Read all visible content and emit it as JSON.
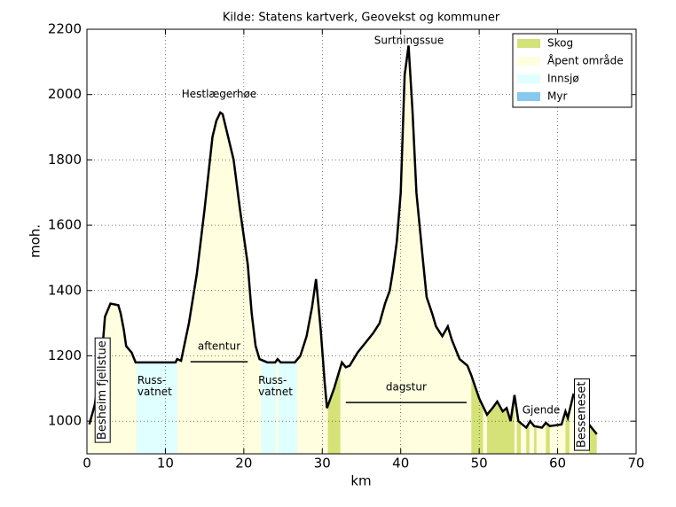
{
  "chart_data": {
    "type": "line",
    "title": "Kilde: Statens kartverk, Geovekst og kommuner",
    "xlabel": "km",
    "ylabel": "moh.",
    "xlim": [
      0,
      70
    ],
    "ylim": [
      900,
      2200
    ],
    "xticks": [
      0,
      10,
      20,
      30,
      40,
      50,
      60,
      70
    ],
    "yticks": [
      1000,
      1200,
      1400,
      1600,
      1800,
      2000,
      2200
    ],
    "grid": true,
    "color": "#000000",
    "fill_color": "#ffffe0",
    "x": [
      0.3,
      1,
      2,
      2.3,
      3,
      4,
      4.3,
      4.7,
      5,
      5.7,
      6.2,
      11.3,
      11.5,
      12,
      13,
      14,
      15,
      16,
      16.5,
      17,
      17.3,
      18,
      18.7,
      19.5,
      20.5,
      21,
      21.5,
      22,
      23,
      24,
      24.3,
      24.7,
      26.5,
      27.2,
      28,
      28.7,
      29.2,
      29.8,
      30.3,
      30.6,
      31.5,
      32.5,
      33,
      33.5,
      34.5,
      35.5,
      36.5,
      37.3,
      38,
      38.6,
      39,
      39.5,
      40,
      40.5,
      41,
      41.5,
      42,
      42.8,
      43.3,
      44,
      44.5,
      45.3,
      46,
      46.5,
      47.5,
      48.5,
      49,
      50,
      51,
      51.7,
      52.3,
      53,
      53.5,
      54,
      54.5,
      55,
      56,
      56.5,
      57,
      58,
      58.5,
      59,
      60.5,
      61,
      61.3,
      62,
      62.5,
      63,
      64,
      65
    ],
    "values": [
      990,
      1050,
      1230,
      1320,
      1360,
      1355,
      1330,
      1280,
      1230,
      1210,
      1180,
      1180,
      1190,
      1185,
      1300,
      1450,
      1650,
      1870,
      1920,
      1945,
      1940,
      1870,
      1800,
      1650,
      1480,
      1330,
      1230,
      1190,
      1180,
      1180,
      1190,
      1180,
      1180,
      1200,
      1260,
      1350,
      1435,
      1280,
      1120,
      1040,
      1100,
      1180,
      1165,
      1170,
      1210,
      1240,
      1270,
      1300,
      1360,
      1400,
      1460,
      1550,
      1700,
      2060,
      2150,
      1950,
      1700,
      1500,
      1380,
      1330,
      1290,
      1260,
      1290,
      1250,
      1190,
      1170,
      1140,
      1070,
      1020,
      1040,
      1060,
      1030,
      1040,
      1000,
      1080,
      1000,
      980,
      1000,
      985,
      980,
      995,
      985,
      990,
      1030,
      1010,
      1080,
      1070,
      1010,
      990,
      960
    ],
    "legend": {
      "position": "upper right",
      "items": [
        {
          "name": "Skog",
          "color": "#d4e277"
        },
        {
          "name": "Åpent område",
          "color": "#ffffe0"
        },
        {
          "name": "Innsjø",
          "color": "#e0ffff"
        },
        {
          "name": "Myr",
          "color": "#87c8f0"
        }
      ]
    },
    "cover": [
      {
        "class": "Innsjø",
        "start": 6.3,
        "end": 11.5
      },
      {
        "class": "Innsjø",
        "start": 22.2,
        "end": 24.1
      },
      {
        "class": "Innsjø",
        "start": 24.4,
        "end": 26.8
      },
      {
        "class": "Skog",
        "start": 30.7,
        "end": 32.3
      },
      {
        "class": "Skog",
        "start": 49,
        "end": 50.5
      },
      {
        "class": "Skog",
        "start": 51,
        "end": 54.5
      },
      {
        "class": "Skog",
        "start": 54.8,
        "end": 55.3
      },
      {
        "class": "Skog",
        "start": 56,
        "end": 56.4
      },
      {
        "class": "Skog",
        "start": 57,
        "end": 57.3
      },
      {
        "class": "Skog",
        "start": 58.5,
        "end": 59
      },
      {
        "class": "Skog",
        "start": 61,
        "end": 61.5
      },
      {
        "class": "Skog",
        "start": 64,
        "end": 65
      }
    ],
    "annotations": [
      {
        "text": "Hestlægerhøe",
        "x": 16.85,
        "y": 2000
      },
      {
        "text": "Surtningssue",
        "x": 41.05,
        "y": 2165
      },
      {
        "text": "Gjende",
        "x": 57.9,
        "y": 1033
      },
      {
        "lines": [
          "Russ-",
          "vatnet"
        ],
        "x": 8.7,
        "y": 1106
      },
      {
        "lines": [
          "Russ-",
          "vatnet"
        ],
        "x": 24.1,
        "y": 1106
      },
      {
        "text": "Besheim fjellstue",
        "x": 2.0,
        "y": 1095,
        "vertical": true
      },
      {
        "text": "Besseneset",
        "x": 63.1,
        "y": 1020,
        "vertical": true
      }
    ],
    "tours": [
      {
        "text": "aftentur",
        "start": 13.2,
        "end": 20.5,
        "y": 1182
      },
      {
        "text": "dagstur",
        "start": 33.0,
        "end": 48.4,
        "y": 1057
      }
    ]
  }
}
